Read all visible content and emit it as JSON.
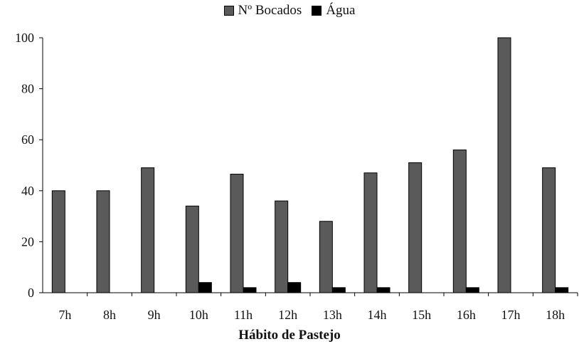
{
  "chart_data": {
    "type": "bar",
    "categories": [
      "7h",
      "8h",
      "9h",
      "10h",
      "11h",
      "12h",
      "13h",
      "14h",
      "15h",
      "16h",
      "17h",
      "18h"
    ],
    "series": [
      {
        "name": "Nº Bocados",
        "values": [
          40,
          40,
          49,
          34,
          46.5,
          36,
          28,
          47,
          51,
          56,
          100,
          49
        ],
        "color": "#5a5a5a"
      },
      {
        "name": "Água",
        "values": [
          0,
          0,
          0,
          4,
          2,
          4,
          2,
          2,
          0,
          2,
          0,
          2
        ],
        "color": "#000000"
      }
    ],
    "title": "",
    "xlabel": "Hábito de Pastejo",
    "ylabel": "",
    "ylim": [
      0,
      100
    ],
    "yticks": [
      "0",
      "20",
      "40",
      "60",
      "80",
      "100"
    ],
    "grid": false,
    "legend_position": "top-center"
  }
}
